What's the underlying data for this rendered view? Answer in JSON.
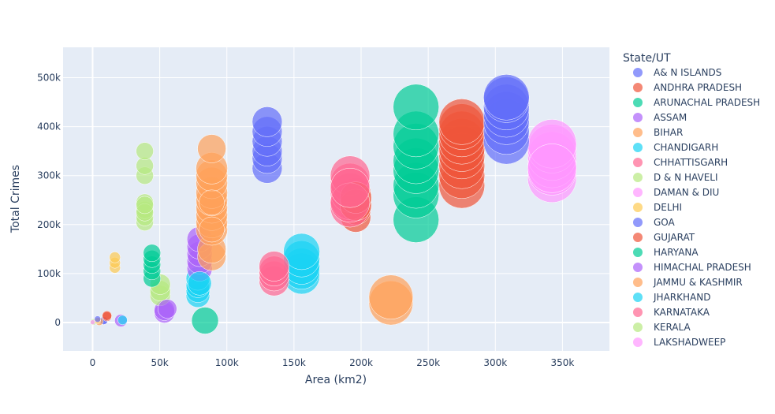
{
  "chart_data": {
    "type": "scatter",
    "xlabel": "Area (km2)",
    "ylabel": "Total Crimes",
    "xlim": [
      -22000,
      385000
    ],
    "ylim": [
      -58000,
      562000
    ],
    "xticks": [
      0,
      50000,
      100000,
      150000,
      200000,
      250000,
      300000,
      350000
    ],
    "xtick_labels": [
      "0",
      "50k",
      "100k",
      "150k",
      "200k",
      "250k",
      "300k",
      "350k"
    ],
    "yticks": [
      0,
      100000,
      200000,
      300000,
      400000,
      500000
    ],
    "ytick_labels": [
      "0",
      "100k",
      "200k",
      "300k",
      "400k",
      "500k"
    ],
    "grid": true,
    "legend_title": "State/UT",
    "legend_position": "right",
    "series": [
      {
        "name": "A& N ISLANDS",
        "color": "#636efa",
        "x": [
          8249,
          8249
        ],
        "y": [
          3000,
          4000
        ],
        "size": [
          10,
          10
        ]
      },
      {
        "name": "ANDHRA PRADESH",
        "color": "#EF553B",
        "x": [
          10700,
          10700,
          196024,
          196024,
          196024,
          275045,
          275045,
          275045,
          275045,
          275045,
          275045,
          275045,
          275045,
          275045
        ],
        "y": [
          12000,
          14000,
          215000,
          230000,
          265000,
          280000,
          300000,
          320000,
          340000,
          355000,
          370000,
          385000,
          400000,
          410000
        ],
        "size": [
          12,
          12,
          38,
          38,
          38,
          58,
          58,
          58,
          58,
          58,
          58,
          58,
          58,
          58
        ]
      },
      {
        "name": "ARUNACHAL PRADESH",
        "color": "#00cc96",
        "x": [
          83743,
          240928,
          240928,
          240928,
          240928,
          240928,
          240928,
          240928,
          240928
        ],
        "y": [
          4000,
          210000,
          260000,
          280000,
          310000,
          330000,
          360000,
          385000,
          440000
        ],
        "size": [
          34,
          58,
          58,
          58,
          58,
          58,
          58,
          58,
          58
        ]
      },
      {
        "name": "ASSAM",
        "color": "#ab63fa",
        "x": [
          21081,
          53483,
          53483
        ],
        "y": [
          4000,
          20000,
          25000
        ],
        "size": [
          16,
          26,
          26
        ]
      },
      {
        "name": "BIHAR",
        "color": "#FFA15A",
        "x": [
          5000,
          222236,
          222236
        ],
        "y": [
          2000,
          40000,
          52000
        ],
        "size": [
          10,
          56,
          56
        ]
      },
      {
        "name": "CHANDIGARH",
        "color": "#19d3f3",
        "x": [
          22327,
          78438,
          78438,
          78438,
          78438,
          155707,
          155707,
          155707,
          155707,
          155707
        ],
        "y": [
          5000,
          55000,
          65000,
          75000,
          90000,
          95000,
          105000,
          115000,
          130000,
          145000
        ],
        "size": [
          12,
          30,
          30,
          30,
          30,
          46,
          46,
          46,
          46,
          46
        ]
      },
      {
        "name": "CHHATTISGARH",
        "color": "#FF6692",
        "x": [
          135192,
          135192,
          135192,
          135192,
          191791,
          191791,
          191791,
          191791,
          191791
        ],
        "y": [
          85000,
          95000,
          105000,
          115000,
          235000,
          250000,
          265000,
          285000,
          300000
        ],
        "size": [
          38,
          38,
          38,
          38,
          50,
          50,
          50,
          50,
          50
        ]
      },
      {
        "name": "D & N HAVELI",
        "color": "#B6E880",
        "x": [
          491,
          38852,
          38852,
          38852,
          38852,
          38852,
          38852,
          38852,
          50362,
          50362,
          50362
        ],
        "y": [
          1000,
          205000,
          215000,
          230000,
          245000,
          300000,
          320000,
          350000,
          55000,
          65000,
          78000
        ],
        "size": [
          8,
          22,
          22,
          22,
          22,
          22,
          22,
          22,
          26,
          26,
          26
        ]
      },
      {
        "name": "DAMAN & DIU",
        "color": "#FF97FF",
        "x": [
          342239,
          342239,
          342239,
          342239,
          342239,
          342239
        ],
        "y": [
          295000,
          310000,
          325000,
          340000,
          355000,
          365000
        ],
        "size": [
          62,
          62,
          62,
          62,
          62,
          62
        ]
      },
      {
        "name": "DELHI",
        "color": "#FECB52",
        "x": [
          16579,
          16579,
          16579,
          3702
        ],
        "y": [
          112000,
          122000,
          133000,
          4000
        ],
        "size": [
          14,
          14,
          14,
          8
        ]
      },
      {
        "name": "GOA",
        "color": "#636efa",
        "x": [
          3702,
          130058,
          130058,
          130058,
          130058,
          130058,
          130058,
          308245,
          308245,
          308245,
          308245,
          308245,
          308245,
          308245
        ],
        "y": [
          7000,
          315000,
          335000,
          350000,
          370000,
          390000,
          410000,
          370000,
          390000,
          410000,
          425000,
          440000,
          455000,
          460000
        ],
        "size": [
          8,
          38,
          38,
          38,
          38,
          38,
          38,
          58,
          58,
          58,
          58,
          58,
          58,
          58
        ]
      },
      {
        "name": "GUJARAT",
        "color": "#EF553B",
        "x": [
          196024,
          196024
        ],
        "y": [
          240000,
          255000
        ],
        "size": [
          40,
          40
        ]
      },
      {
        "name": "HARYANA",
        "color": "#00cc96",
        "x": [
          44212,
          44212,
          44212,
          44212,
          44212
        ],
        "y": [
          90000,
          105000,
          118000,
          130000,
          142000
        ],
        "size": [
          22,
          22,
          22,
          22,
          22
        ]
      },
      {
        "name": "HIMACHAL PRADESH",
        "color": "#ab63fa",
        "x": [
          55673,
          79716,
          79716,
          79716,
          79716,
          79716
        ],
        "y": [
          28000,
          110000,
          125000,
          140000,
          155000,
          170000
        ],
        "size": [
          24,
          32,
          32,
          32,
          32,
          32
        ]
      },
      {
        "name": "JAMMU & KASHMIR",
        "color": "#FFA15A",
        "x": [
          88752,
          88752,
          88752,
          88752,
          88752,
          88752,
          88752,
          88752,
          88752,
          88752,
          88752,
          88752,
          88752,
          88752
        ],
        "y": [
          135000,
          150000,
          190000,
          205000,
          220000,
          235000,
          250000,
          265000,
          285000,
          300000,
          315000,
          355000,
          190000,
          245000
        ],
        "size": [
          36,
          36,
          40,
          40,
          40,
          40,
          40,
          40,
          40,
          40,
          40,
          36,
          32,
          32
        ]
      },
      {
        "name": "JHARKHAND",
        "color": "#19d3f3",
        "x": [
          79716
        ],
        "y": [
          80000
        ],
        "size": [
          30
        ]
      },
      {
        "name": "KARNATAKA",
        "color": "#FF6692",
        "x": [
          191791,
          191791
        ],
        "y": [
          245000,
          275000
        ],
        "size": [
          50,
          50
        ]
      },
      {
        "name": "KERALA",
        "color": "#B6E880",
        "x": [
          38852,
          38852
        ],
        "y": [
          225000,
          240000
        ],
        "size": [
          22,
          22
        ]
      },
      {
        "name": "LAKSHADWEEP",
        "color": "#FF97FF",
        "x": [
          32,
          342239
        ],
        "y": [
          500,
          315000
        ],
        "size": [
          6,
          62
        ]
      }
    ]
  }
}
